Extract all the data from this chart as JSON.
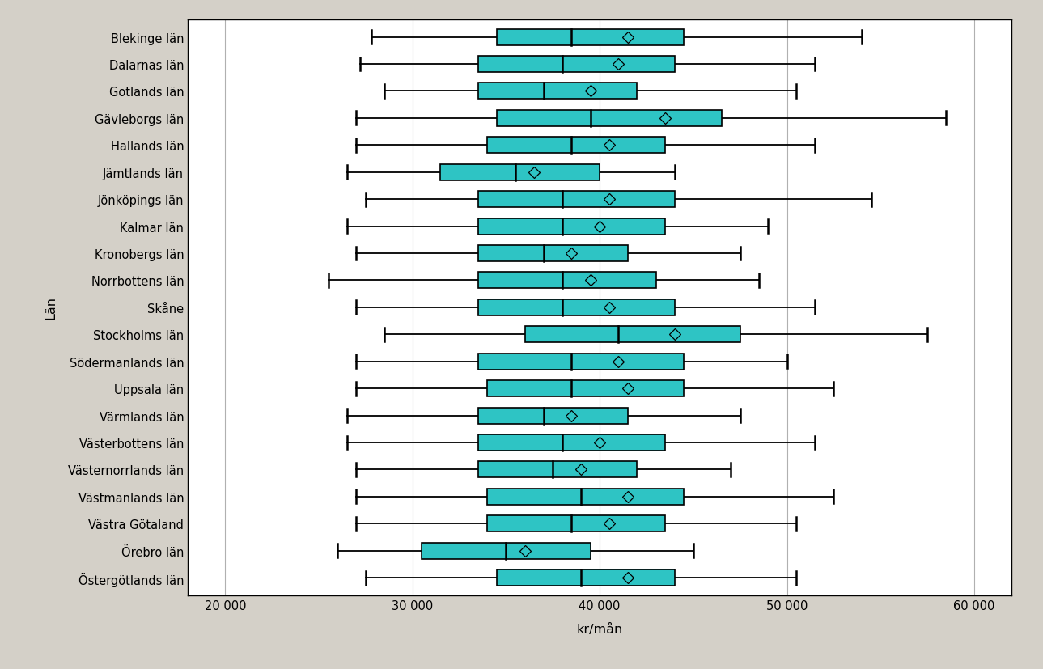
{
  "title": "",
  "xlabel": "kr/mån",
  "ylabel": "Län",
  "xlim": [
    18000,
    62000
  ],
  "xticks": [
    20000,
    30000,
    40000,
    50000,
    60000
  ],
  "xtick_labels": [
    "20 000",
    "30 000",
    "40 000",
    "50 000",
    "60 000"
  ],
  "background_color": "#d4d0c8",
  "plot_bg_color": "#ffffff",
  "box_color": "#2ec4c4",
  "box_edge_color": "#000000",
  "median_color": "#000000",
  "whisker_color": "#000000",
  "mean_marker_color": "#000000",
  "grid_color": "#b0b0b0",
  "label_color": "#000000",
  "counties": [
    "Blekinge län",
    "Dalarnas län",
    "Gotlands län",
    "Gävleborgs län",
    "Hallands län",
    "Jämtlands län",
    "Jönköpings län",
    "Kalmar län",
    "Kronobergs län",
    "Norrbottens län",
    "Skåne",
    "Stockholms län",
    "Södermanlands län",
    "Uppsala län",
    "Värmlands län",
    "Västerbottens län",
    "Västernorrlands län",
    "Västmanlands län",
    "Västra Götaland",
    "Örebro län",
    "Östergötlands län"
  ],
  "stats": {
    "Blekinge län": {
      "whislo": 27800,
      "q1": 34500,
      "med": 38500,
      "q3": 44500,
      "whishi": 54000,
      "mean": 41500
    },
    "Dalarnas län": {
      "whislo": 27200,
      "q1": 33500,
      "med": 38000,
      "q3": 44000,
      "whishi": 51500,
      "mean": 41000
    },
    "Gotlands län": {
      "whislo": 28500,
      "q1": 33500,
      "med": 37000,
      "q3": 42000,
      "whishi": 50500,
      "mean": 39500
    },
    "Gävleborgs län": {
      "whislo": 27000,
      "q1": 34500,
      "med": 39500,
      "q3": 46500,
      "whishi": 58500,
      "mean": 43500
    },
    "Hallands län": {
      "whislo": 27000,
      "q1": 34000,
      "med": 38500,
      "q3": 43500,
      "whishi": 51500,
      "mean": 40500
    },
    "Jämtlands län": {
      "whislo": 26500,
      "q1": 31500,
      "med": 35500,
      "q3": 40000,
      "whishi": 44000,
      "mean": 36500
    },
    "Jönköpings län": {
      "whislo": 27500,
      "q1": 33500,
      "med": 38000,
      "q3": 44000,
      "whishi": 54500,
      "mean": 40500
    },
    "Kalmar län": {
      "whislo": 26500,
      "q1": 33500,
      "med": 38000,
      "q3": 43500,
      "whishi": 49000,
      "mean": 40000
    },
    "Kronobergs län": {
      "whislo": 27000,
      "q1": 33500,
      "med": 37000,
      "q3": 41500,
      "whishi": 47500,
      "mean": 38500
    },
    "Norrbottens län": {
      "whislo": 25500,
      "q1": 33500,
      "med": 38000,
      "q3": 43000,
      "whishi": 48500,
      "mean": 39500
    },
    "Skåne": {
      "whislo": 27000,
      "q1": 33500,
      "med": 38000,
      "q3": 44000,
      "whishi": 51500,
      "mean": 40500
    },
    "Stockholms län": {
      "whislo": 28500,
      "q1": 36000,
      "med": 41000,
      "q3": 47500,
      "whishi": 57500,
      "mean": 44000
    },
    "Södermanlands län": {
      "whislo": 27000,
      "q1": 33500,
      "med": 38500,
      "q3": 44500,
      "whishi": 50000,
      "mean": 41000
    },
    "Uppsala län": {
      "whislo": 27000,
      "q1": 34000,
      "med": 38500,
      "q3": 44500,
      "whishi": 52500,
      "mean": 41500
    },
    "Värmlands län": {
      "whislo": 26500,
      "q1": 33500,
      "med": 37000,
      "q3": 41500,
      "whishi": 47500,
      "mean": 38500
    },
    "Västerbottens län": {
      "whislo": 26500,
      "q1": 33500,
      "med": 38000,
      "q3": 43500,
      "whishi": 51500,
      "mean": 40000
    },
    "Västernorrlands län": {
      "whislo": 27000,
      "q1": 33500,
      "med": 37500,
      "q3": 42000,
      "whishi": 47000,
      "mean": 39000
    },
    "Västmanlands län": {
      "whislo": 27000,
      "q1": 34000,
      "med": 39000,
      "q3": 44500,
      "whishi": 52500,
      "mean": 41500
    },
    "Västra Götaland": {
      "whislo": 27000,
      "q1": 34000,
      "med": 38500,
      "q3": 43500,
      "whishi": 50500,
      "mean": 40500
    },
    "Örebro län": {
      "whislo": 26000,
      "q1": 30500,
      "med": 35000,
      "q3": 39500,
      "whishi": 45000,
      "mean": 36000
    },
    "Östergötlands län": {
      "whislo": 27500,
      "q1": 34500,
      "med": 39000,
      "q3": 44000,
      "whishi": 50500,
      "mean": 41500
    }
  },
  "figsize": [
    12.89,
    8.28
  ],
  "dpi": 100
}
